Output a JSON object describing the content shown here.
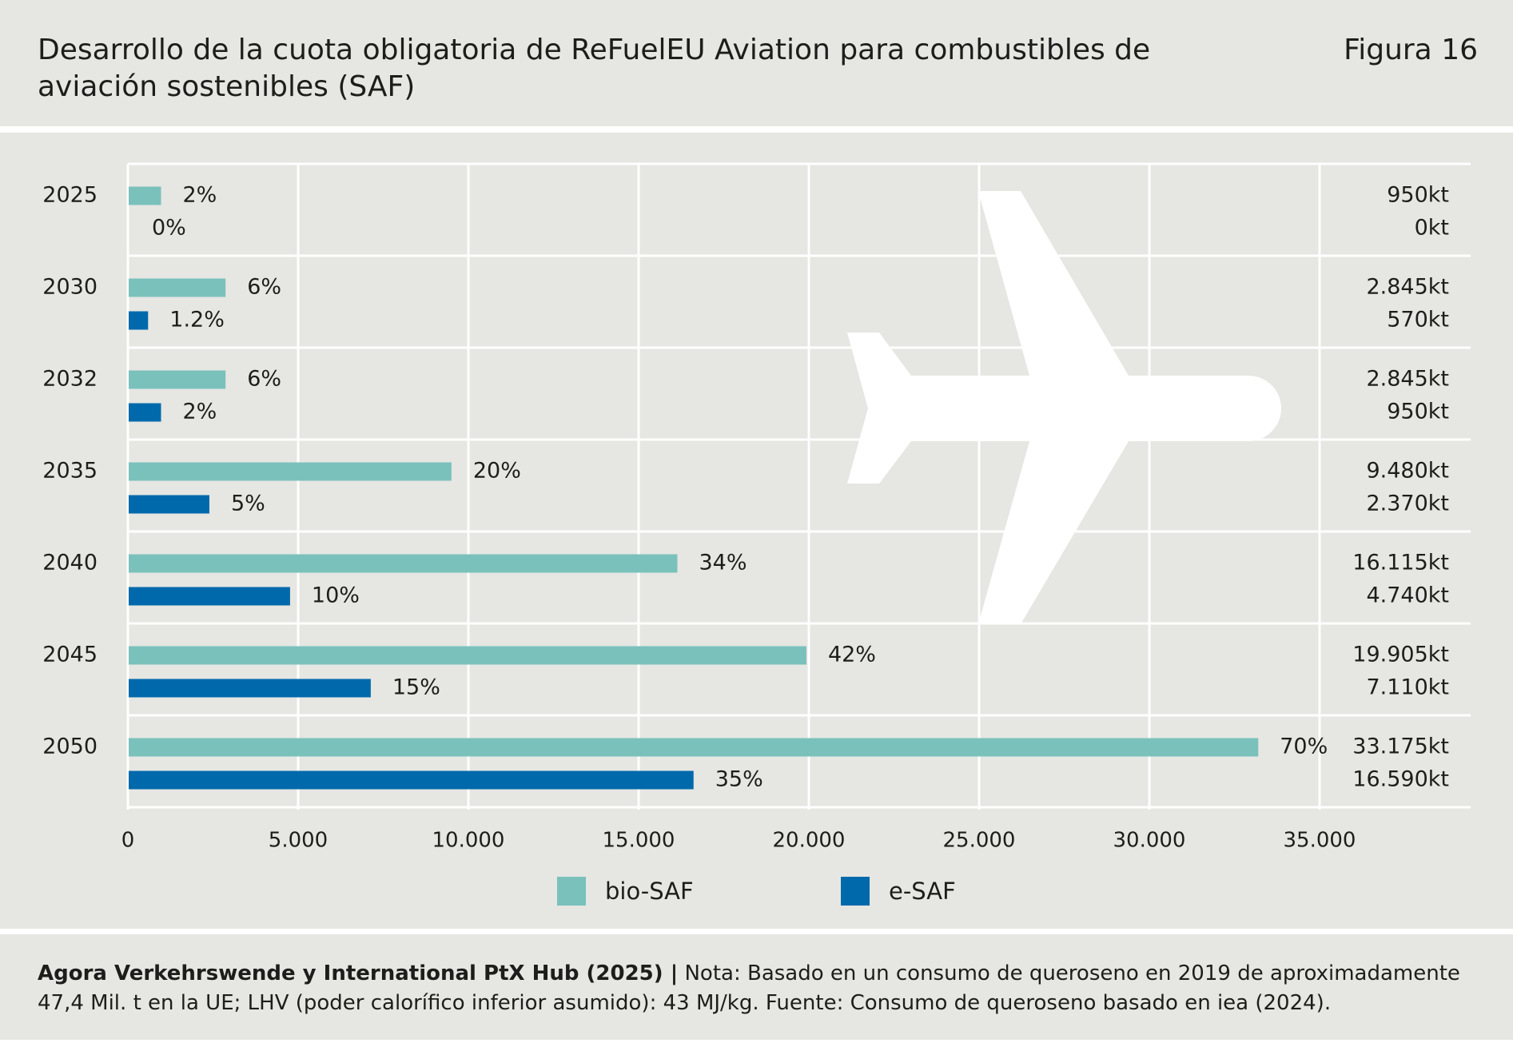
{
  "header": {
    "title": "Desarrollo de la cuota obligatoria de ReFuelEU Aviation para combustibles de aviación sostenibles (SAF)",
    "figure_label": "Figura 16"
  },
  "legend": {
    "bio_label": "bio-SAF",
    "e_label": "e-SAF"
  },
  "footer": {
    "source": "Agora Verkehrswende y International PtX Hub (2025) |",
    "note": " Nota: Basado en un consumo de queroseno en 2019 de aproximadamente 47,4 Mil. t en la UE; LHV (poder calorífico inferior asumido): 43 MJ/kg. Fuente: Consumo de queroseno basado en iea (2024)."
  },
  "colors": {
    "bio_saf": "#7ac1bc",
    "e_saf": "#0069ac",
    "background": "#e6e6e2",
    "grid": "#ffffff",
    "plane": "#ffffff"
  },
  "icons": [
    "airplane-icon"
  ],
  "chart_data": {
    "type": "bar",
    "orientation": "horizontal",
    "categories": [
      "2025",
      "2030",
      "2032",
      "2035",
      "2040",
      "2045",
      "2050"
    ],
    "series": [
      {
        "name": "bio-SAF",
        "values": [
          950,
          2845,
          2845,
          9480,
          16115,
          19905,
          33175
        ],
        "share_labels": [
          "2%",
          "6%",
          "6%",
          "20%",
          "34%",
          "42%",
          "70%"
        ],
        "amount_labels": [
          "950kt",
          "2.845kt",
          "2.845kt",
          "9.480kt",
          "16.115kt",
          "19.905kt",
          "33.175kt"
        ]
      },
      {
        "name": "e-SAF",
        "values": [
          0,
          570,
          950,
          2370,
          4740,
          7110,
          16590
        ],
        "share_labels": [
          "0%",
          "1.2%",
          "2%",
          "5%",
          "10%",
          "15%",
          "35%"
        ],
        "amount_labels": [
          "0kt",
          "570kt",
          "950kt",
          "2.370kt",
          "4.740kt",
          "7.110kt",
          "16.590kt"
        ]
      }
    ],
    "xlim": [
      0,
      39000
    ],
    "xticks": [
      0,
      5000,
      10000,
      15000,
      20000,
      25000,
      30000,
      35000
    ],
    "xtick_labels": [
      "0",
      "5.000",
      "10.000",
      "15.000",
      "20.000",
      "25.000",
      "30.000",
      "35.000"
    ],
    "grid": true,
    "legend_position": "bottom"
  }
}
